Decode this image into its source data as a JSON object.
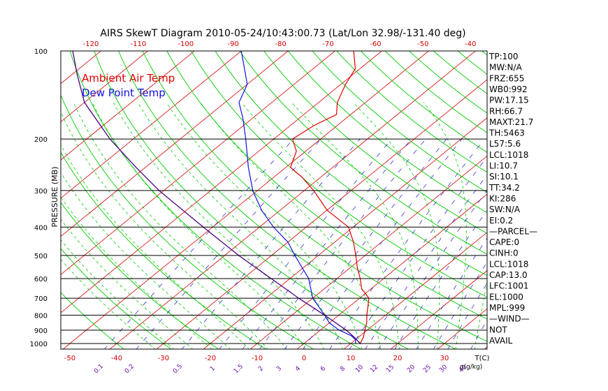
{
  "colors": {
    "background": "#ffffff",
    "frame": "#000000",
    "isotherm": "#d81b1b",
    "temp_trace": "#e00000",
    "dewpoint_trace": "#1010e0",
    "dry_adiabat": "#00cc00",
    "moist_adiabat": "#00cc00",
    "mixing_ratio": "#3333cc",
    "parcel_trace": "#4b0082",
    "top_axis_text": "#d00000",
    "bottom_axis_text": "#d00000",
    "mixing_label_text": "#6a0dad"
  },
  "chart_data": {
    "type": "line",
    "title": "AIRS SkewT Diagram 2010-05-24/10:43:00.73 (Lat/Lon 32.98/-131.40 deg)",
    "ylabel": "PRESSURE (MB)",
    "y_scale": "log",
    "ylim": [
      1000,
      100
    ],
    "pressure_ticks": [
      "100",
      "200",
      "300",
      "400",
      "500",
      "600",
      "700",
      "800",
      "900",
      "1000"
    ],
    "bottom_temp_ticks": [
      "-50",
      "-40",
      "-30",
      "-20",
      "-10",
      "0",
      "10",
      "20",
      "30"
    ],
    "bottom_temp_values": [
      -50,
      -40,
      -30,
      -20,
      -10,
      0,
      10,
      20,
      30
    ],
    "bottom_temp_unit": "T(C)",
    "top_temp_ticks": [
      "-120",
      "-110",
      "-100",
      "-90",
      "-80",
      "-70",
      "-60",
      "-50",
      "-40"
    ],
    "top_temp_values": [
      -120,
      -110,
      -100,
      -90,
      -80,
      -70,
      -60,
      -50,
      -40
    ],
    "mixing_ratio_labels": [
      "0.1",
      "0.2",
      "0.5",
      "1",
      "1.5",
      "2",
      "3",
      "4",
      "6",
      "8",
      "10",
      "12",
      "15",
      "20",
      "25",
      "30",
      "40"
    ],
    "mixing_ratio_values": [
      0.1,
      0.2,
      0.5,
      1,
      1.5,
      2,
      3,
      4,
      6,
      8,
      10,
      12,
      15,
      20,
      25,
      30,
      40
    ],
    "mixing_ratio_unit": "g(g/kg)",
    "legend": {
      "placement": "top-left",
      "entries": [
        "Ambient Air Temp",
        "Dew Point Temp"
      ]
    },
    "series": [
      {
        "name": "Ambient Air Temp",
        "points": [
          {
            "p": 1000,
            "t": 12
          },
          {
            "p": 950,
            "t": 11
          },
          {
            "p": 900,
            "t": 9.5
          },
          {
            "p": 850,
            "t": 8
          },
          {
            "p": 800,
            "t": 6
          },
          {
            "p": 700,
            "t": 2
          },
          {
            "p": 650,
            "t": -2
          },
          {
            "p": 600,
            "t": -5
          },
          {
            "p": 550,
            "t": -8.5
          },
          {
            "p": 500,
            "t": -12
          },
          {
            "p": 450,
            "t": -16
          },
          {
            "p": 400,
            "t": -21
          },
          {
            "p": 350,
            "t": -30
          },
          {
            "p": 300,
            "t": -38
          },
          {
            "p": 270,
            "t": -44
          },
          {
            "p": 250,
            "t": -49
          },
          {
            "p": 220,
            "t": -52
          },
          {
            "p": 200,
            "t": -56
          },
          {
            "p": 180,
            "t": -55
          },
          {
            "p": 165,
            "t": -53
          },
          {
            "p": 150,
            "t": -56
          },
          {
            "p": 130,
            "t": -59
          },
          {
            "p": 115,
            "t": -61
          },
          {
            "p": 100,
            "t": -66
          }
        ]
      },
      {
        "name": "Dew Point Temp",
        "points": [
          {
            "p": 1000,
            "t": 11
          },
          {
            "p": 970,
            "t": 10
          },
          {
            "p": 940,
            "t": 8
          },
          {
            "p": 900,
            "t": 4
          },
          {
            "p": 850,
            "t": 0
          },
          {
            "p": 800,
            "t": -3
          },
          {
            "p": 700,
            "t": -10
          },
          {
            "p": 600,
            "t": -16
          },
          {
            "p": 500,
            "t": -25
          },
          {
            "p": 450,
            "t": -30
          },
          {
            "p": 400,
            "t": -37
          },
          {
            "p": 350,
            "t": -44
          },
          {
            "p": 300,
            "t": -51
          },
          {
            "p": 250,
            "t": -58
          },
          {
            "p": 200,
            "t": -66
          },
          {
            "p": 170,
            "t": -72
          },
          {
            "p": 150,
            "t": -77
          },
          {
            "p": 130,
            "t": -80
          },
          {
            "p": 100,
            "t": -90
          }
        ]
      }
    ],
    "parcel_points": [
      {
        "p": 1000,
        "t": 12
      },
      {
        "p": 950,
        "t": 9
      },
      {
        "p": 900,
        "t": 5.5
      },
      {
        "p": 800,
        "t": -3
      },
      {
        "p": 700,
        "t": -13
      },
      {
        "p": 600,
        "t": -24
      },
      {
        "p": 500,
        "t": -37
      },
      {
        "p": 400,
        "t": -52
      },
      {
        "p": 300,
        "t": -71
      },
      {
        "p": 250,
        "t": -82
      },
      {
        "p": 200,
        "t": -95
      },
      {
        "p": 150,
        "t": -110
      },
      {
        "p": 120,
        "t": -119
      },
      {
        "p": 100,
        "t": -126
      }
    ],
    "indices": [
      "TP:100",
      "MW:N/A",
      "FRZ:655",
      "WB0:992",
      "PW:17.15",
      "RH:66.7",
      "MAXT:21.7",
      "TH:5463",
      "L57:5.6",
      "LCL:1018",
      "LI:10.7",
      "SI:10.1",
      "TT:34.2",
      "KI:286",
      "SW:N/A",
      "EI:0.2",
      "—PARCEL—",
      "CAPE:0",
      "CINH:0",
      "LCL:1018",
      "CAP:13.0",
      "LFC:1001",
      "EL:1000",
      "MPL:999",
      "—WIND—",
      "NOT",
      "AVAIL"
    ],
    "grid": true
  }
}
